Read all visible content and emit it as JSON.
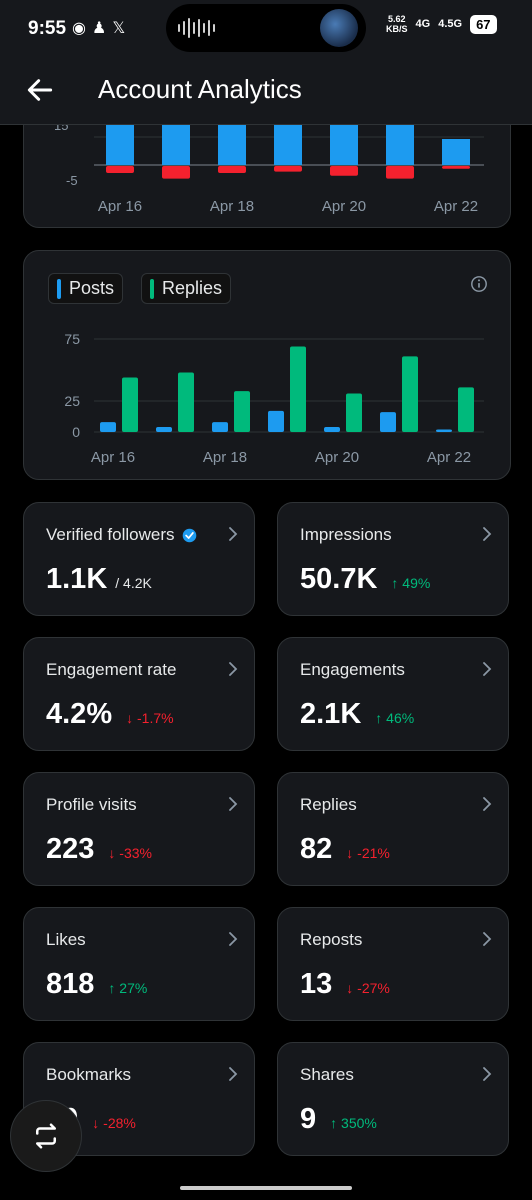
{
  "status_bar": {
    "time": "9:55",
    "apps": [
      "◉",
      "♟",
      "𝕏"
    ],
    "speed": "5.62",
    "speed_unit": "KB/S",
    "net1": "4G",
    "net2": "4.5G",
    "battery": "67"
  },
  "header": {
    "title": "Account Analytics"
  },
  "top_chart": {
    "tick_labels": [
      "15",
      "-5"
    ],
    "x_labels": [
      "Apr 16",
      "Apr 18",
      "Apr 20",
      "Apr 22"
    ]
  },
  "posts_replies_chart": {
    "legend": [
      "Posts",
      "Replies"
    ],
    "colors": {
      "posts": "#1d9bf0",
      "replies": "#00ba7c"
    },
    "y_ticks": [
      "75",
      "25",
      "0"
    ],
    "x_labels": [
      "Apr 16",
      "Apr 18",
      "Apr 20",
      "Apr 22"
    ]
  },
  "chart_data": [
    {
      "type": "bar",
      "categories": [
        "Apr 16",
        "Apr 17",
        "Apr 18",
        "Apr 19",
        "Apr 20",
        "Apr 21",
        "Apr 22"
      ],
      "series": [
        {
          "values": [
            22,
            22,
            22,
            22,
            22,
            22,
            13
          ],
          "color": "#1d9bf0"
        },
        {
          "values": [
            -5,
            -9,
            -5,
            -4,
            -7,
            -9,
            -2
          ],
          "color": "#f4212e"
        }
      ],
      "ylim": [
        -8,
        22
      ]
    },
    {
      "type": "bar",
      "categories": [
        "Apr 16",
        "Apr 17",
        "Apr 18",
        "Apr 19",
        "Apr 20",
        "Apr 21",
        "Apr 22"
      ],
      "series": [
        {
          "name": "Posts",
          "values": [
            8,
            4,
            8,
            17,
            4,
            16,
            2
          ]
        },
        {
          "name": "Replies",
          "values": [
            44,
            48,
            33,
            69,
            31,
            61,
            36
          ]
        }
      ],
      "ylim": [
        0,
        75
      ]
    }
  ],
  "stats": [
    {
      "label": "Verified followers",
      "value": "1.1K",
      "sub": "/ 4.2K",
      "delta": "",
      "dir": ""
    },
    {
      "label": "Impressions",
      "value": "50.7K",
      "sub": "",
      "delta": "49%",
      "dir": "up"
    },
    {
      "label": "Engagement rate",
      "value": "4.2%",
      "sub": "",
      "delta": "-1.7%",
      "dir": "down"
    },
    {
      "label": "Engagements",
      "value": "2.1K",
      "sub": "",
      "delta": "46%",
      "dir": "up"
    },
    {
      "label": "Profile visits",
      "value": "223",
      "sub": "",
      "delta": "-33%",
      "dir": "down"
    },
    {
      "label": "Replies",
      "value": "82",
      "sub": "",
      "delta": "-21%",
      "dir": "down"
    },
    {
      "label": "Likes",
      "value": "818",
      "sub": "",
      "delta": "27%",
      "dir": "up"
    },
    {
      "label": "Reposts",
      "value": "13",
      "sub": "",
      "delta": "-27%",
      "dir": "down"
    },
    {
      "label": "Bookmarks",
      "value": "10",
      "sub": "",
      "delta": "-28%",
      "dir": "down"
    },
    {
      "label": "Shares",
      "value": "9",
      "sub": "",
      "delta": "350%",
      "dir": "up"
    }
  ],
  "icons": {
    "back": "arrow-left-icon",
    "info": "info-icon",
    "chevron": "chevron-right-icon",
    "verified": "verified-badge-icon",
    "fab": "repost-icon"
  }
}
